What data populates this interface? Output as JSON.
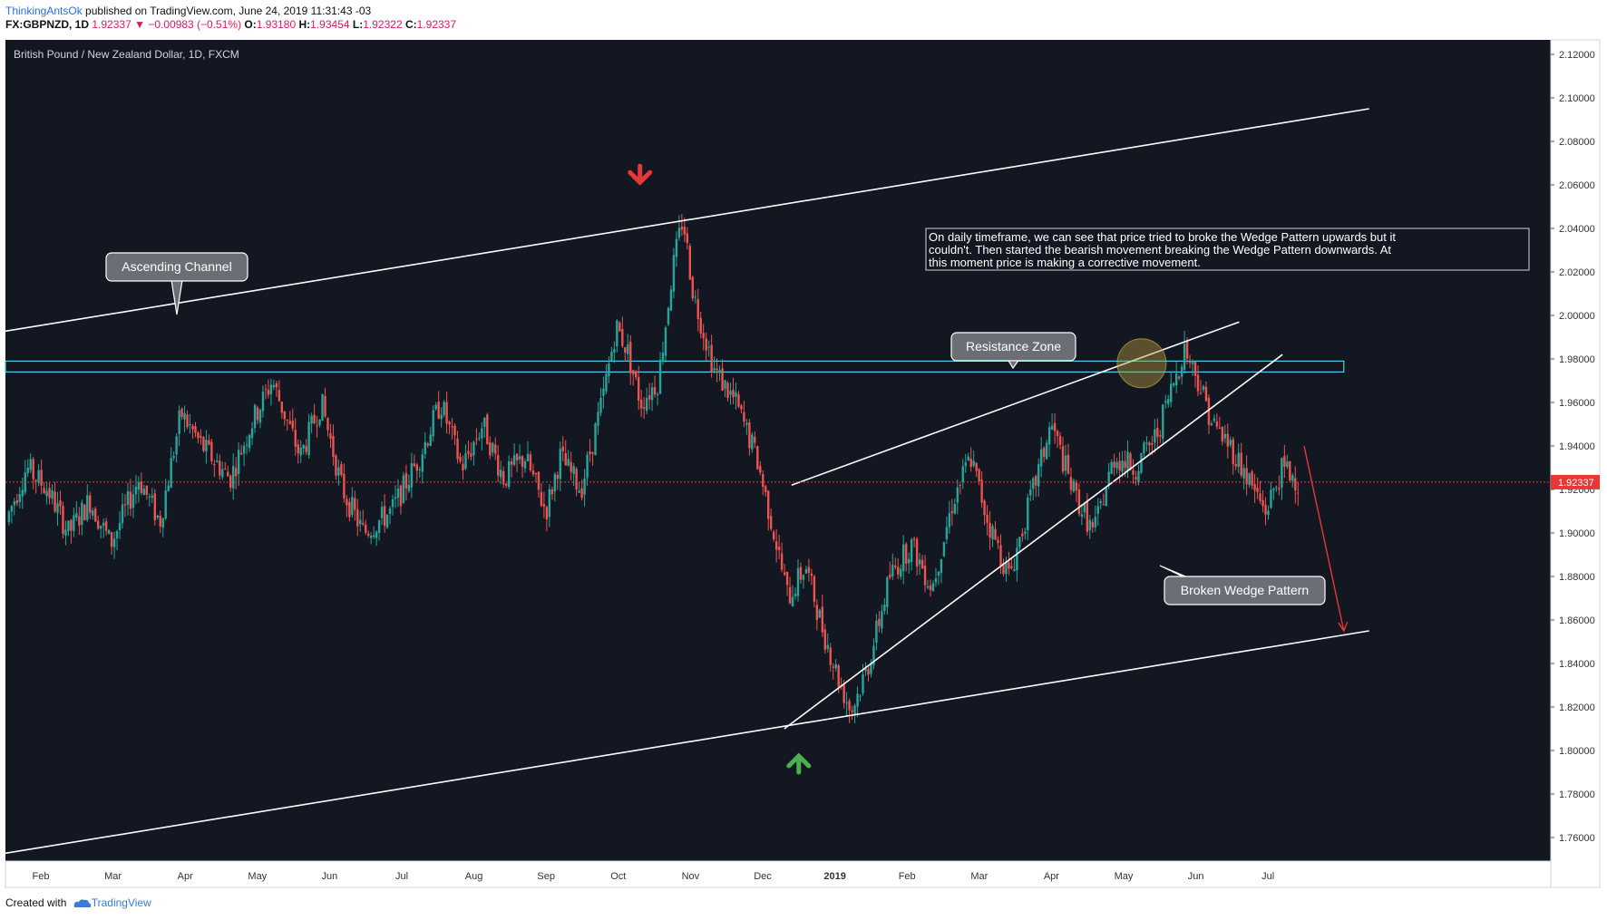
{
  "header": {
    "author": "ThinkingAntsOk",
    "published": "published on TradingView.com, June 24, 2019 11:31:43 -03",
    "symbol": "FX:GBPNZD, 1D",
    "last": "1.92337",
    "change": "−0.00983 (−0.51%)",
    "o_label": "O:",
    "o_value": "1.93180",
    "h_label": "H:",
    "h_value": "1.93454",
    "l_label": "L:",
    "l_value": "1.92322",
    "c_label": "C:",
    "c_value": "1.92337"
  },
  "footer": {
    "created": "Created with",
    "brand": "TradingView"
  },
  "colors": {
    "background": "#131722",
    "up": "#26a69a",
    "down": "#ef5350",
    "resistance": "#4dd0e1",
    "price_line": "#e53935",
    "up_arrow": "#4caf50",
    "down_arrow": "#e53935"
  },
  "chart_data": {
    "type": "candlestick",
    "title": "British Pound / New Zealand Dollar, 1D, FXCM",
    "ylim": [
      1.75,
      2.13
    ],
    "y_ticks": [
      1.76,
      1.78,
      1.8,
      1.82,
      1.84,
      1.86,
      1.88,
      1.9,
      1.92,
      1.94,
      1.96,
      1.98,
      2.0,
      2.02,
      2.04,
      2.06,
      2.08,
      2.1,
      2.12
    ],
    "y_tick_labels": [
      "1.76000",
      "1.78000",
      "1.80000",
      "1.82000",
      "1.84000",
      "1.86000",
      "1.88000",
      "1.90000",
      "1.92000",
      "1.94000",
      "1.96000",
      "1.98000",
      "2.00000",
      "2.02000",
      "2.04000",
      "2.06000",
      "2.08000",
      "2.10000",
      "2.12000"
    ],
    "x_ticks": [
      "Feb",
      "Mar",
      "Apr",
      "May",
      "Jun",
      "Jul",
      "Aug",
      "Sep",
      "Oct",
      "Nov",
      "Dec",
      "2019",
      "Feb",
      "Mar",
      "Apr",
      "May",
      "Jun",
      "Jul"
    ],
    "x_tick_months": [
      1,
      2,
      3,
      4,
      5,
      6,
      7,
      8,
      9,
      10,
      11,
      12,
      13,
      14,
      15,
      16,
      17,
      18
    ],
    "last_price": 1.92337,
    "last_price_label": "1.92337",
    "price_path": [
      [
        0,
        1.905
      ],
      [
        0.3,
        1.93
      ],
      [
        0.6,
        1.92
      ],
      [
        0.9,
        1.9
      ],
      [
        1.2,
        1.915
      ],
      [
        1.5,
        1.895
      ],
      [
        1.9,
        1.925
      ],
      [
        2.2,
        1.905
      ],
      [
        2.5,
        1.955
      ],
      [
        2.8,
        1.94
      ],
      [
        3.2,
        1.925
      ],
      [
        3.5,
        1.95
      ],
      [
        3.8,
        1.97
      ],
      [
        4.2,
        1.935
      ],
      [
        4.5,
        1.96
      ],
      [
        4.8,
        1.92
      ],
      [
        5.1,
        1.9
      ],
      [
        5.5,
        1.91
      ],
      [
        5.9,
        1.935
      ],
      [
        6.2,
        1.96
      ],
      [
        6.5,
        1.93
      ],
      [
        6.8,
        1.95
      ],
      [
        7.1,
        1.925
      ],
      [
        7.4,
        1.935
      ],
      [
        7.7,
        1.91
      ],
      [
        7.9,
        1.935
      ],
      [
        8.2,
        1.92
      ],
      [
        8.5,
        1.96
      ],
      [
        8.7,
        1.995
      ],
      [
        8.85,
        1.985
      ],
      [
        9.05,
        1.96
      ],
      [
        9.3,
        1.97
      ],
      [
        9.5,
        2.02
      ],
      [
        9.65,
        2.045
      ],
      [
        9.8,
        2.01
      ],
      [
        10.1,
        1.975
      ],
      [
        10.4,
        1.96
      ],
      [
        10.7,
        1.935
      ],
      [
        10.95,
        1.9
      ],
      [
        11.15,
        1.87
      ],
      [
        11.4,
        1.885
      ],
      [
        11.65,
        1.855
      ],
      [
        11.9,
        1.83
      ],
      [
        12.05,
        1.818
      ],
      [
        12.3,
        1.84
      ],
      [
        12.6,
        1.88
      ],
      [
        12.9,
        1.895
      ],
      [
        13.2,
        1.875
      ],
      [
        13.5,
        1.915
      ],
      [
        13.75,
        1.935
      ],
      [
        14.0,
        1.905
      ],
      [
        14.3,
        1.88
      ],
      [
        14.6,
        1.915
      ],
      [
        14.9,
        1.95
      ],
      [
        15.2,
        1.92
      ],
      [
        15.5,
        1.9
      ],
      [
        15.8,
        1.935
      ],
      [
        16.1,
        1.93
      ],
      [
        16.4,
        1.945
      ],
      [
        16.6,
        1.965
      ],
      [
        16.8,
        1.985
      ],
      [
        17.0,
        1.97
      ],
      [
        17.2,
        1.95
      ],
      [
        17.45,
        1.94
      ],
      [
        17.7,
        1.925
      ],
      [
        17.95,
        1.91
      ],
      [
        18.2,
        1.93
      ],
      [
        18.45,
        1.923
      ]
    ],
    "resistance_zone": {
      "low": 1.974,
      "high": 1.979,
      "x_from": 0,
      "x_to": 19.05
    },
    "channel_upper": {
      "x1": 0,
      "y1": 1.99,
      "x2": 19.4,
      "y2": 2.095
    },
    "channel_lower": {
      "x1": 0,
      "y1": 1.75,
      "x2": 19.4,
      "y2": 1.855
    },
    "wedge_upper": {
      "x1": 11.4,
      "y1": 1.922,
      "x2": 17.6,
      "y2": 1.997
    },
    "wedge_lower": {
      "x1": 11.3,
      "y1": 1.81,
      "x2": 18.2,
      "y2": 1.982
    },
    "forecast_arrow": {
      "x1": 18.5,
      "y1": 1.94,
      "x2": 19.05,
      "y2": 1.855
    },
    "circle_marker": {
      "x": 16.25,
      "y": 1.978
    },
    "top_marker": {
      "x": 9.3,
      "y": 2.047
    },
    "bottom_marker": {
      "x": 11.5,
      "y": 1.81
    },
    "annotations": {
      "ascending_channel": "Ascending Channel",
      "resistance_zone": "Resistance Zone",
      "broken_wedge": "Broken Wedge Pattern",
      "note_lines": [
        "On daily timeframe, we can see that price tried to broke the Wedge Pattern upwards but it",
        "couldn't. Then started the bearish movement breaking the Wedge Pattern downwards. At",
        "this moment price is making a corrective movement."
      ]
    }
  }
}
